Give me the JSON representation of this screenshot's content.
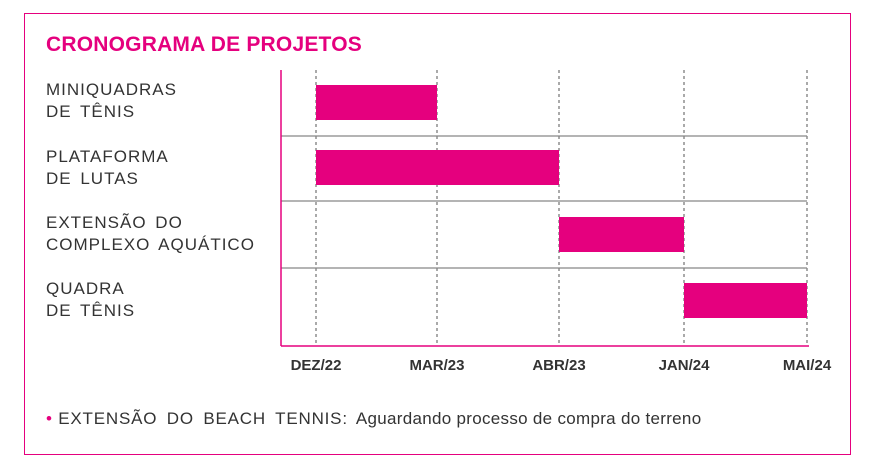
{
  "chart_data": {
    "type": "bar",
    "title": "CRONOGRAMA DE PROJETOS",
    "categories": [
      [
        "MINIQUADRAS",
        "DE TÊNIS"
      ],
      [
        "PLATAFORMA",
        "DE LUTAS"
      ],
      [
        "EXTENSÃO DO",
        "COMPLEXO AQUÁTICO"
      ],
      [
        "QUADRA",
        "DE TÊNIS"
      ]
    ],
    "x_ticks": [
      "DEZ/22",
      "MAR/23",
      "ABR/23",
      "JAN/24",
      "MAI/24"
    ],
    "bars": [
      {
        "start": "DEZ/22",
        "end": "MAR/23"
      },
      {
        "start": "DEZ/22",
        "end": "ABR/23"
      },
      {
        "start": "ABR/23",
        "end": "JAN/24"
      },
      {
        "start": "JAN/24",
        "end": "MAI/24"
      }
    ],
    "grid": true,
    "colors": {
      "bar": "#e5007e",
      "axis": "#e5007e",
      "row_divider": "#888888",
      "grid": "#555555"
    }
  },
  "footnote": {
    "label": "EXTENSÃO DO BEACH TENNIS:",
    "text": "Aguardando processo de compra do terreno"
  }
}
